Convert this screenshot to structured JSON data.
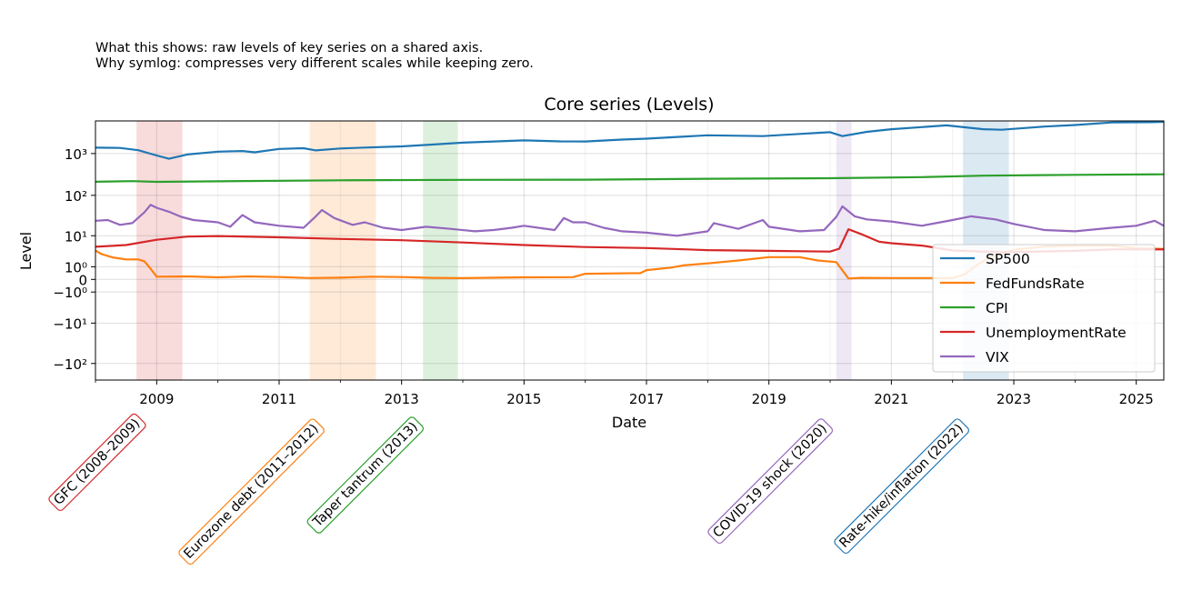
{
  "notes": [
    "What this shows: raw levels of key series on a shared axis.",
    "Why symlog: compresses very different scales while keeping zero."
  ],
  "chart_data": {
    "type": "line",
    "title": "Core series (Levels)",
    "xlabel": "Date",
    "ylabel": "Level",
    "yscale": "symlog",
    "xlim": [
      2008.0,
      2025.45
    ],
    "ylim": [
      -250,
      6000
    ],
    "x_ticks": [
      2009,
      2011,
      2013,
      2015,
      2017,
      2019,
      2021,
      2023,
      2025
    ],
    "x_tick_labels": [
      "2009",
      "2011",
      "2013",
      "2015",
      "2017",
      "2019",
      "2021",
      "2023",
      "2025"
    ],
    "y_ticks": [
      1000,
      100,
      10,
      1,
      0,
      -1,
      -10,
      -100
    ],
    "y_tick_labels": [
      "10³",
      "10²",
      "10¹",
      "10⁰",
      "0",
      "−10⁰",
      "−10¹",
      "−10²"
    ],
    "grid": true,
    "legend_position": "center-right",
    "series": [
      {
        "name": "SP500",
        "color": "#1f77b4",
        "points": [
          [
            2008.0,
            1380
          ],
          [
            2008.4,
            1360
          ],
          [
            2008.7,
            1200
          ],
          [
            2009.0,
            900
          ],
          [
            2009.2,
            750
          ],
          [
            2009.5,
            950
          ],
          [
            2010.0,
            1110
          ],
          [
            2010.4,
            1150
          ],
          [
            2010.6,
            1070
          ],
          [
            2011.0,
            1290
          ],
          [
            2011.4,
            1340
          ],
          [
            2011.6,
            1190
          ],
          [
            2012.0,
            1320
          ],
          [
            2012.4,
            1390
          ],
          [
            2013.0,
            1480
          ],
          [
            2013.5,
            1640
          ],
          [
            2014.0,
            1820
          ],
          [
            2015.0,
            2060
          ],
          [
            2015.6,
            1950
          ],
          [
            2016.0,
            1940
          ],
          [
            2016.6,
            2160
          ],
          [
            2017.0,
            2270
          ],
          [
            2018.0,
            2720
          ],
          [
            2018.9,
            2600
          ],
          [
            2019.5,
            2940
          ],
          [
            2020.0,
            3230
          ],
          [
            2020.2,
            2600
          ],
          [
            2020.6,
            3300
          ],
          [
            2021.0,
            3800
          ],
          [
            2021.9,
            4700
          ],
          [
            2022.5,
            3800
          ],
          [
            2022.8,
            3700
          ],
          [
            2023.5,
            4400
          ],
          [
            2024.0,
            4800
          ],
          [
            2024.6,
            5500
          ],
          [
            2025.2,
            5600
          ],
          [
            2025.45,
            5700
          ]
        ]
      },
      {
        "name": "FedFundsRate",
        "color": "#ff7f0e",
        "points": [
          [
            2008.0,
            3.9
          ],
          [
            2008.1,
            3.0
          ],
          [
            2008.3,
            2.3
          ],
          [
            2008.5,
            2.0
          ],
          [
            2008.7,
            2.0
          ],
          [
            2008.8,
            1.7
          ],
          [
            2008.9,
            0.8
          ],
          [
            2009.0,
            0.16
          ],
          [
            2009.5,
            0.18
          ],
          [
            2010.0,
            0.12
          ],
          [
            2010.5,
            0.18
          ],
          [
            2011.0,
            0.14
          ],
          [
            2011.5,
            0.08
          ],
          [
            2012.0,
            0.1
          ],
          [
            2012.5,
            0.16
          ],
          [
            2013.0,
            0.14
          ],
          [
            2013.5,
            0.09
          ],
          [
            2014.0,
            0.07
          ],
          [
            2015.0,
            0.12
          ],
          [
            2015.8,
            0.13
          ],
          [
            2016.0,
            0.36
          ],
          [
            2016.5,
            0.39
          ],
          [
            2016.9,
            0.41
          ],
          [
            2017.0,
            0.66
          ],
          [
            2017.4,
            0.91
          ],
          [
            2017.6,
            1.16
          ],
          [
            2018.0,
            1.41
          ],
          [
            2018.5,
            1.82
          ],
          [
            2019.0,
            2.4
          ],
          [
            2019.5,
            2.4
          ],
          [
            2019.8,
            1.83
          ],
          [
            2020.1,
            1.58
          ],
          [
            2020.2,
            0.65
          ],
          [
            2020.3,
            0.05
          ],
          [
            2020.5,
            0.09
          ],
          [
            2021.0,
            0.08
          ],
          [
            2021.5,
            0.08
          ],
          [
            2022.0,
            0.08
          ],
          [
            2022.2,
            0.33
          ],
          [
            2022.4,
            1.21
          ],
          [
            2022.6,
            2.33
          ],
          [
            2022.8,
            3.08
          ],
          [
            2023.0,
            4.1
          ],
          [
            2023.5,
            5.08
          ],
          [
            2024.0,
            5.33
          ],
          [
            2024.6,
            5.33
          ],
          [
            2025.0,
            4.6
          ],
          [
            2025.45,
            4.33
          ]
        ]
      },
      {
        "name": "CPI",
        "color": "#2ca02c",
        "points": [
          [
            2008.0,
            212
          ],
          [
            2008.6,
            219
          ],
          [
            2009.0,
            211
          ],
          [
            2010.0,
            217
          ],
          [
            2012.0,
            229
          ],
          [
            2014.0,
            235
          ],
          [
            2016.0,
            238
          ],
          [
            2018.0,
            250
          ],
          [
            2020.0,
            258
          ],
          [
            2021.5,
            273
          ],
          [
            2022.5,
            296
          ],
          [
            2024.0,
            310
          ],
          [
            2025.45,
            320
          ]
        ]
      },
      {
        "name": "UnemploymentRate",
        "color": "#d62728",
        "points": [
          [
            2008.0,
            5.0
          ],
          [
            2008.5,
            5.6
          ],
          [
            2009.0,
            7.8
          ],
          [
            2009.5,
            9.5
          ],
          [
            2010.0,
            9.8
          ],
          [
            2011.0,
            9.1
          ],
          [
            2012.0,
            8.2
          ],
          [
            2013.0,
            7.6
          ],
          [
            2014.0,
            6.6
          ],
          [
            2015.0,
            5.6
          ],
          [
            2016.0,
            4.9
          ],
          [
            2017.0,
            4.6
          ],
          [
            2018.0,
            4.0
          ],
          [
            2019.0,
            3.8
          ],
          [
            2020.0,
            3.6
          ],
          [
            2020.15,
            4.4
          ],
          [
            2020.3,
            14.7
          ],
          [
            2020.5,
            11.1
          ],
          [
            2020.8,
            6.9
          ],
          [
            2021.0,
            6.3
          ],
          [
            2021.5,
            5.4
          ],
          [
            2022.0,
            3.9
          ],
          [
            2022.5,
            3.6
          ],
          [
            2023.0,
            3.5
          ],
          [
            2024.0,
            3.8
          ],
          [
            2024.6,
            4.2
          ],
          [
            2025.45,
            4.2
          ]
        ]
      },
      {
        "name": "VIX",
        "color": "#9467bd",
        "points": [
          [
            2008.0,
            24
          ],
          [
            2008.2,
            25
          ],
          [
            2008.4,
            19
          ],
          [
            2008.6,
            21
          ],
          [
            2008.8,
            39
          ],
          [
            2008.9,
            59
          ],
          [
            2009.0,
            50
          ],
          [
            2009.2,
            40
          ],
          [
            2009.4,
            30
          ],
          [
            2009.6,
            25
          ],
          [
            2010.0,
            22
          ],
          [
            2010.2,
            17
          ],
          [
            2010.4,
            33
          ],
          [
            2010.6,
            22
          ],
          [
            2011.0,
            18
          ],
          [
            2011.4,
            16
          ],
          [
            2011.6,
            31
          ],
          [
            2011.7,
            44
          ],
          [
            2011.9,
            28
          ],
          [
            2012.2,
            19
          ],
          [
            2012.4,
            22
          ],
          [
            2012.7,
            16
          ],
          [
            2013.0,
            14
          ],
          [
            2013.4,
            17
          ],
          [
            2013.8,
            15
          ],
          [
            2014.2,
            13
          ],
          [
            2014.5,
            14
          ],
          [
            2014.8,
            16
          ],
          [
            2015.0,
            18
          ],
          [
            2015.5,
            14
          ],
          [
            2015.65,
            28
          ],
          [
            2015.8,
            22
          ],
          [
            2016.0,
            22
          ],
          [
            2016.3,
            16
          ],
          [
            2016.6,
            13
          ],
          [
            2017.0,
            12
          ],
          [
            2017.5,
            10
          ],
          [
            2018.0,
            13
          ],
          [
            2018.1,
            21
          ],
          [
            2018.5,
            15
          ],
          [
            2018.9,
            25
          ],
          [
            2019.0,
            17
          ],
          [
            2019.5,
            13
          ],
          [
            2019.9,
            14
          ],
          [
            2020.1,
            30
          ],
          [
            2020.2,
            54
          ],
          [
            2020.4,
            31
          ],
          [
            2020.6,
            26
          ],
          [
            2021.0,
            23
          ],
          [
            2021.5,
            18
          ],
          [
            2022.0,
            25
          ],
          [
            2022.3,
            31
          ],
          [
            2022.7,
            26
          ],
          [
            2023.0,
            20
          ],
          [
            2023.5,
            14
          ],
          [
            2024.0,
            13
          ],
          [
            2024.6,
            16
          ],
          [
            2025.0,
            18
          ],
          [
            2025.3,
            24
          ],
          [
            2025.45,
            18
          ]
        ]
      }
    ],
    "shaded_events": [
      {
        "label": "GFC (2008–2009)",
        "start": 2008.67,
        "end": 2009.42,
        "color": "#d62728"
      },
      {
        "label": "Eurozone debt (2011–2012)",
        "start": 2011.5,
        "end": 2012.58,
        "color": "#ff7f0e"
      },
      {
        "label": "Taper tantrum (2013)",
        "start": 2013.35,
        "end": 2013.92,
        "color": "#2ca02c"
      },
      {
        "label": "COVID-19 shock (2020)",
        "start": 2020.1,
        "end": 2020.35,
        "color": "#9467bd"
      },
      {
        "label": "Rate-hike/inflation (2022)",
        "start": 2022.17,
        "end": 2022.92,
        "color": "#1f77b4"
      }
    ]
  }
}
